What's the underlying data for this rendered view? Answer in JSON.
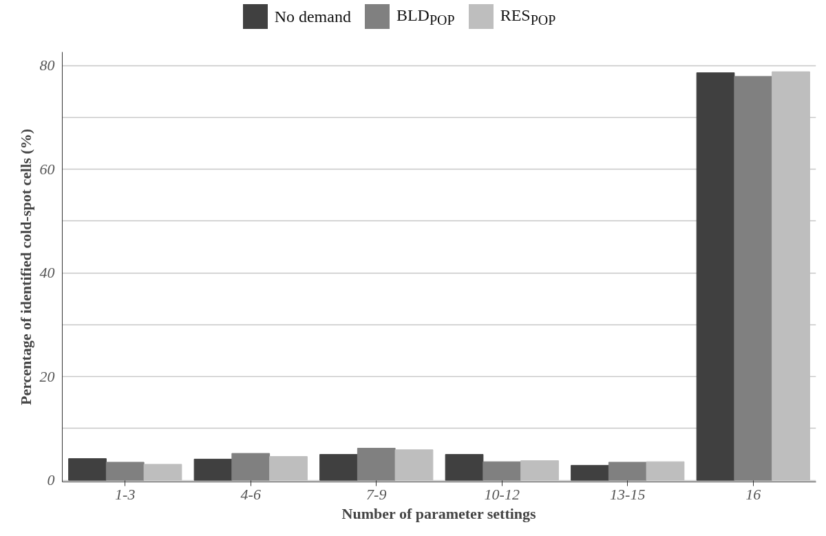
{
  "chart_data": {
    "type": "bar",
    "xlabel": "Number of parameter settings",
    "ylabel": "Percentage of identified cold-spot cells (%)",
    "categories": [
      "1-3",
      "4-6",
      "7-9",
      "10-12",
      "13-15",
      "16"
    ],
    "series": [
      {
        "name": "No demand",
        "color": "#404040",
        "values": [
          4.2,
          4.1,
          5.0,
          5.0,
          2.9,
          78.6
        ]
      },
      {
        "name": "BLD$_{POP}$",
        "color": "#808080",
        "values": [
          3.5,
          5.2,
          6.2,
          3.6,
          3.5,
          77.9
        ]
      },
      {
        "name": "RES$_{POP}$",
        "color": "#bebebe",
        "values": [
          3.1,
          4.6,
          5.9,
          3.8,
          3.6,
          78.8
        ]
      }
    ],
    "ylim": [
      -0.3,
      82.6
    ],
    "yticks": [
      0,
      {
        "value": 10,
        "label": null
      },
      20,
      {
        "value": 30,
        "label": null
      },
      40,
      {
        "value": 50,
        "label": null
      },
      60,
      {
        "value": 70,
        "label": null
      },
      80
    ],
    "grid": "y",
    "legend": "top"
  }
}
